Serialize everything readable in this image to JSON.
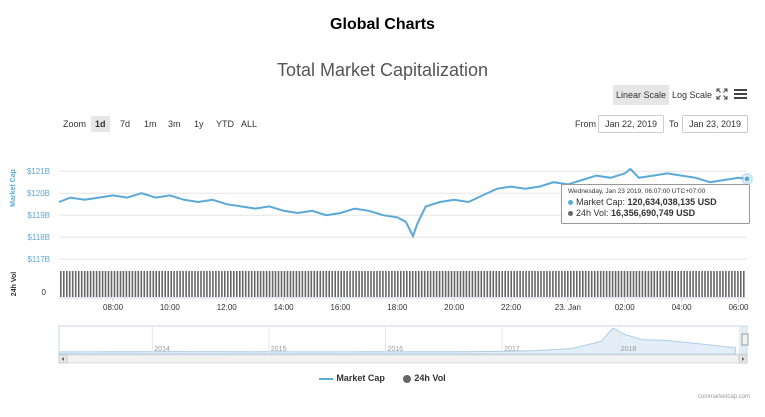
{
  "page_title": "Global Charts",
  "controls": {
    "linear_scale": "Linear Scale",
    "log_scale": "Log Scale",
    "zoom_label": "Zoom",
    "ranges": [
      "1d",
      "7d",
      "1m",
      "3m",
      "1y",
      "YTD",
      "ALL"
    ],
    "active_range": "1d",
    "from_label": "From",
    "from_value": "Jan 22, 2019",
    "to_label": "To",
    "to_value": "Jan 23, 2019"
  },
  "tooltip": {
    "header": "Wednesday, Jan 23 2019, 06:07:00 UTC+07:00",
    "market_cap_label": "Market Cap:",
    "market_cap_value": "120,634,038,135 USD",
    "volume_label": "24h Vol:",
    "volume_value": "16,356,690,749 USD"
  },
  "credit": "coinmarketcap.com",
  "colors": {
    "market_cap": "#5ba9d8",
    "volume": "#666666",
    "navigator": "#aecde6"
  },
  "chart_data": {
    "type": "line",
    "title": "Total Market Capitalization",
    "ylabel": "Market Cap",
    "y2label": "24h Vol",
    "y_ticks": [
      "$121B",
      "$120B",
      "$119B",
      "$118B",
      "$117B"
    ],
    "y_tick_values": [
      121,
      120,
      119,
      118,
      117
    ],
    "y2_ticks": [
      "0"
    ],
    "ylim": [
      116.6,
      121.6
    ],
    "xlim": [
      6.1,
      30.3
    ],
    "x_ticks": [
      "08:00",
      "10:00",
      "12:00",
      "14:00",
      "16:00",
      "18:00",
      "20:00",
      "22:00",
      "23. Jan",
      "02:00",
      "04:00",
      "06:00"
    ],
    "x_tick_values": [
      8,
      10,
      12,
      14,
      16,
      18,
      20,
      22,
      24,
      26,
      28,
      30
    ],
    "series": [
      {
        "name": "Market Cap",
        "unit": "billion USD",
        "x": [
          6.1,
          6.5,
          7.0,
          7.5,
          8.0,
          8.5,
          9.0,
          9.5,
          10.0,
          10.5,
          11.0,
          11.5,
          12.0,
          12.5,
          13.0,
          13.5,
          14.0,
          14.5,
          15.0,
          15.5,
          16.0,
          16.5,
          17.0,
          17.5,
          18.0,
          18.3,
          18.55,
          18.7,
          19.0,
          19.5,
          20.0,
          20.5,
          21.0,
          21.5,
          22.0,
          22.5,
          23.0,
          23.5,
          24.0,
          24.5,
          25.0,
          25.5,
          26.0,
          26.2,
          26.5,
          27.0,
          27.5,
          28.0,
          28.5,
          29.0,
          29.5,
          30.0,
          30.3
        ],
        "y": [
          119.6,
          119.8,
          119.7,
          119.8,
          119.9,
          119.8,
          120.0,
          119.8,
          119.9,
          119.7,
          119.6,
          119.7,
          119.5,
          119.4,
          119.3,
          119.4,
          119.2,
          119.1,
          119.2,
          119.0,
          119.1,
          119.3,
          119.2,
          119.0,
          118.9,
          118.7,
          118.05,
          118.6,
          119.4,
          119.6,
          119.7,
          119.6,
          119.9,
          120.2,
          120.3,
          120.2,
          120.3,
          120.5,
          120.4,
          120.6,
          120.8,
          120.7,
          120.9,
          121.1,
          120.7,
          120.8,
          120.9,
          120.8,
          120.7,
          120.5,
          120.6,
          120.7,
          120.65
        ]
      },
      {
        "name": "24h Vol",
        "unit": "USD",
        "x": [
          6.1,
          30.3
        ],
        "y": [
          16356690749,
          16356690749
        ]
      }
    ],
    "navigator": {
      "x_ticks": [
        "2014",
        "2015",
        "2016",
        "2017",
        "2018"
      ],
      "x_tick_values": [
        2014,
        2015,
        2016,
        2017,
        2018
      ],
      "xlim": [
        2013.2,
        2019.1
      ],
      "x": [
        2013.2,
        2013.8,
        2014.2,
        2014.8,
        2015.4,
        2016.0,
        2016.6,
        2017.0,
        2017.3,
        2017.6,
        2017.85,
        2017.95,
        2018.05,
        2018.2,
        2018.4,
        2018.7,
        2019.0
      ],
      "y": [
        2,
        8,
        10,
        6,
        4,
        6,
        9,
        16,
        40,
        100,
        300,
        680,
        500,
        350,
        330,
        230,
        120
      ]
    }
  }
}
